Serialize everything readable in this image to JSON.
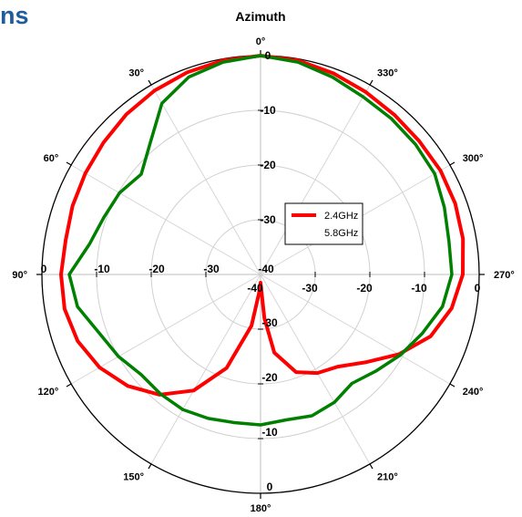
{
  "header": {
    "fragment_text": "ns"
  },
  "chart_data": {
    "type": "polar-line",
    "title": "Azimuth",
    "theta_direction": "counterclockwise",
    "theta_zero": "top",
    "angle_ticks": [
      0,
      30,
      60,
      90,
      120,
      150,
      180,
      210,
      240,
      270,
      300,
      330
    ],
    "angle_labels": [
      "0°",
      "30°",
      "60°",
      "90°",
      "120°",
      "150°",
      "180°",
      "210°",
      "240°",
      "270°",
      "300°",
      "330°"
    ],
    "rlim": [
      -40,
      0
    ],
    "r_ticks": [
      0,
      -10,
      -20,
      -30,
      -40
    ],
    "r_tick_labels": [
      "0",
      "-10",
      "-20",
      "-30",
      "-40"
    ],
    "legend": {
      "position": "center-right",
      "entries": [
        "2.4GHz",
        "5.8GHz"
      ]
    },
    "series": [
      {
        "name": "2.4GHz",
        "color": "#ff0000",
        "theta": [
          0,
          10,
          20,
          30,
          40,
          50,
          60,
          70,
          80,
          90,
          100,
          110,
          120,
          130,
          140,
          150,
          160,
          170,
          175,
          180,
          185,
          190,
          200,
          210,
          220,
          230,
          240,
          250,
          260,
          270,
          280,
          290,
          300,
          310,
          320,
          330,
          340,
          350,
          360
        ],
        "values": [
          0,
          -0.3,
          -0.7,
          -1.2,
          -1.8,
          -2.5,
          -3.0,
          -3.4,
          -3.8,
          -3.5,
          -3.6,
          -4.4,
          -6.0,
          -8.3,
          -11.3,
          -15.5,
          -21.8,
          -30.5,
          -36.5,
          -38.5,
          -32.0,
          -25.5,
          -21.0,
          -19.2,
          -18.0,
          -15.0,
          -10.8,
          -6.9,
          -4.5,
          -3.0,
          -2.4,
          -2.1,
          -2.0,
          -2.1,
          -1.9,
          -1.5,
          -0.9,
          -0.3,
          0
        ]
      },
      {
        "name": "5.8GHz",
        "color": "#008000",
        "theta": [
          0,
          10,
          20,
          30,
          40,
          50,
          60,
          70,
          80,
          90,
          100,
          110,
          120,
          130,
          140,
          150,
          160,
          170,
          180,
          190,
          200,
          210,
          220,
          230,
          240,
          250,
          260,
          270,
          280,
          290,
          300,
          310,
          320,
          330,
          340,
          350,
          360
        ],
        "values": [
          0,
          -0.6,
          -1.6,
          -3.9,
          -8.6,
          -11.5,
          -10.2,
          -9.5,
          -8.2,
          -5.0,
          -6.0,
          -8.6,
          -10.0,
          -11.5,
          -11.5,
          -11.5,
          -12.0,
          -12.5,
          -12.5,
          -13.0,
          -12.5,
          -13.0,
          -14.0,
          -12.5,
          -10.5,
          -8.5,
          -6.2,
          -5.0,
          -5.0,
          -4.2,
          -3.2,
          -3.0,
          -2.8,
          -2.5,
          -1.6,
          -0.6,
          0
        ]
      }
    ]
  }
}
